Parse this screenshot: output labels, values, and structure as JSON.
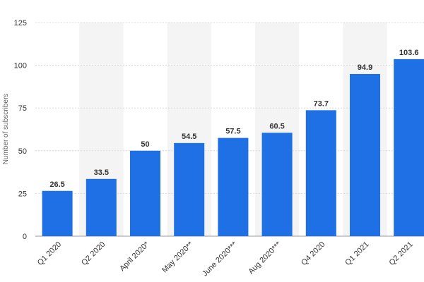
{
  "chart_data": {
    "type": "bar",
    "title": "",
    "xlabel": "",
    "ylabel": "Number of subscribers",
    "categories": [
      "Q1 2020",
      "Q2 2020",
      "April 2020*",
      "May 2020**",
      "June 2020***",
      "Aug 2020***",
      "Q4 2020",
      "Q1 2021",
      "Q2 2021"
    ],
    "values": [
      26.5,
      33.5,
      50,
      54.5,
      57.5,
      60.5,
      73.7,
      94.9,
      103.6
    ],
    "value_labels": [
      "26.5",
      "33.5",
      "50",
      "54.5",
      "57.5",
      "60.5",
      "73.7",
      "94.9",
      "103.6"
    ],
    "y_ticks": [
      0,
      25,
      50,
      75,
      100,
      125
    ],
    "ylim": [
      0,
      125
    ],
    "grid": true,
    "legend": "none",
    "bar_color": "#1f6fe5",
    "band_color": "#f4f4f4"
  }
}
